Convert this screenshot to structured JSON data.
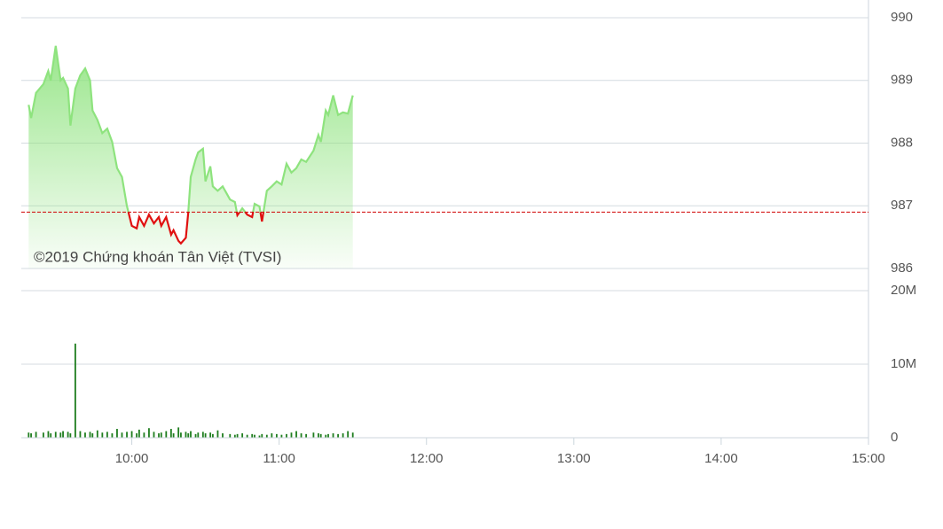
{
  "chart_data": [
    {
      "type": "area",
      "watermark": "©2019 Chứng khoán Tân Việt (TVSI)",
      "x": [
        "09:18",
        "09:19",
        "09:21",
        "09:24",
        "09:26",
        "09:27",
        "09:29",
        "09:31",
        "09:32",
        "09:34",
        "09:35",
        "09:37",
        "09:39",
        "09:41",
        "09:43",
        "09:44",
        "09:46",
        "09:48",
        "09:50",
        "09:52",
        "09:54",
        "09:56",
        "09:58",
        "10:00",
        "10:02",
        "10:03",
        "10:05",
        "10:07",
        "10:09",
        "10:11",
        "10:12",
        "10:14",
        "10:16",
        "10:17",
        "10:19",
        "10:20",
        "10:22",
        "10:23",
        "10:24",
        "10:26",
        "10:27",
        "10:29",
        "10:30",
        "10:32",
        "10:33",
        "10:35",
        "10:37",
        "10:40",
        "10:42",
        "10:43",
        "10:45",
        "10:47",
        "10:49",
        "10:50",
        "10:52",
        "10:53",
        "10:55",
        "10:57",
        "10:59",
        "11:01",
        "11:03",
        "11:05",
        "11:07",
        "11:09",
        "11:11",
        "11:14",
        "11:16",
        "11:17",
        "11:19",
        "11:20",
        "11:22",
        "11:24",
        "11:26",
        "11:28",
        "11:30"
      ],
      "values": [
        988.61,
        988.4,
        988.8,
        988.94,
        989.15,
        989.0,
        989.55,
        989.0,
        989.04,
        988.87,
        988.28,
        988.87,
        989.08,
        989.19,
        989.0,
        988.52,
        988.37,
        988.16,
        988.23,
        988.02,
        987.6,
        987.46,
        987.0,
        986.68,
        986.64,
        986.82,
        986.68,
        986.86,
        986.72,
        986.82,
        986.68,
        986.82,
        986.54,
        986.61,
        986.44,
        986.4,
        986.49,
        986.89,
        987.46,
        987.74,
        987.85,
        987.91,
        987.39,
        987.63,
        987.31,
        987.24,
        987.31,
        987.1,
        987.06,
        986.85,
        986.96,
        986.86,
        986.82,
        987.03,
        986.99,
        986.75,
        987.24,
        987.31,
        987.39,
        987.34,
        987.67,
        987.53,
        987.6,
        987.74,
        987.7,
        987.88,
        988.13,
        988.02,
        988.52,
        988.45,
        988.76,
        988.45,
        988.49,
        988.47,
        988.76
      ],
      "reference": 986.9,
      "color": "#8ee37e",
      "below_color": "#e01010",
      "reference_color": "#d00000",
      "xlim": [
        "09:15",
        "15:00"
      ],
      "ylim": [
        986,
        990
      ],
      "yticks": [
        986,
        987,
        988,
        989,
        990
      ],
      "grid": true
    },
    {
      "type": "bar",
      "color": "#1e7d1e",
      "x": [
        "09:18",
        "09:19",
        "09:21",
        "09:24",
        "09:26",
        "09:27",
        "09:29",
        "09:31",
        "09:32",
        "09:34",
        "09:35",
        "09:37",
        "09:39",
        "09:41",
        "09:43",
        "09:44",
        "09:46",
        "09:48",
        "09:50",
        "09:52",
        "09:54",
        "09:56",
        "09:58",
        "10:00",
        "10:02",
        "10:03",
        "10:05",
        "10:07",
        "10:09",
        "10:11",
        "10:12",
        "10:14",
        "10:16",
        "10:17",
        "10:19",
        "10:20",
        "10:22",
        "10:23",
        "10:24",
        "10:26",
        "10:27",
        "10:29",
        "10:30",
        "10:32",
        "10:33",
        "10:35",
        "10:37",
        "10:40",
        "10:42",
        "10:43",
        "10:45",
        "10:47",
        "10:49",
        "10:50",
        "10:52",
        "10:53",
        "10:55",
        "10:57",
        "10:59",
        "11:01",
        "11:03",
        "11:05",
        "11:07",
        "11:09",
        "11:11",
        "11:14",
        "11:16",
        "11:17",
        "11:19",
        "11:20",
        "11:22",
        "11:24",
        "11:26",
        "11:28",
        "11:30"
      ],
      "values": [
        700000,
        600000,
        800000,
        700000,
        900000,
        600000,
        800000,
        700000,
        900000,
        800000,
        600000,
        12800000,
        900000,
        700000,
        800000,
        600000,
        1000000,
        700000,
        800000,
        600000,
        1200000,
        700000,
        800000,
        900000,
        600000,
        1100000,
        700000,
        1300000,
        800000,
        600000,
        700000,
        900000,
        1200000,
        600000,
        1400000,
        700000,
        800000,
        600000,
        900000,
        500000,
        700000,
        800000,
        600000,
        700000,
        500000,
        1000000,
        600000,
        500000,
        400000,
        500000,
        600000,
        400000,
        500000,
        400000,
        300000,
        500000,
        400000,
        600000,
        500000,
        400000,
        500000,
        700000,
        900000,
        600000,
        500000,
        700000,
        600000,
        500000,
        400000,
        500000,
        600000,
        500000,
        600000,
        900000,
        700000
      ],
      "xlim": [
        "09:15",
        "15:00"
      ],
      "xticks": [
        "10:00",
        "11:00",
        "12:00",
        "13:00",
        "14:00",
        "15:00"
      ],
      "ylim": [
        0,
        20000000
      ],
      "yticks": [
        0,
        {
          "value": 10000000,
          "label": "10M"
        },
        {
          "value": 20000000,
          "label": "20M"
        }
      ],
      "grid": true
    }
  ]
}
